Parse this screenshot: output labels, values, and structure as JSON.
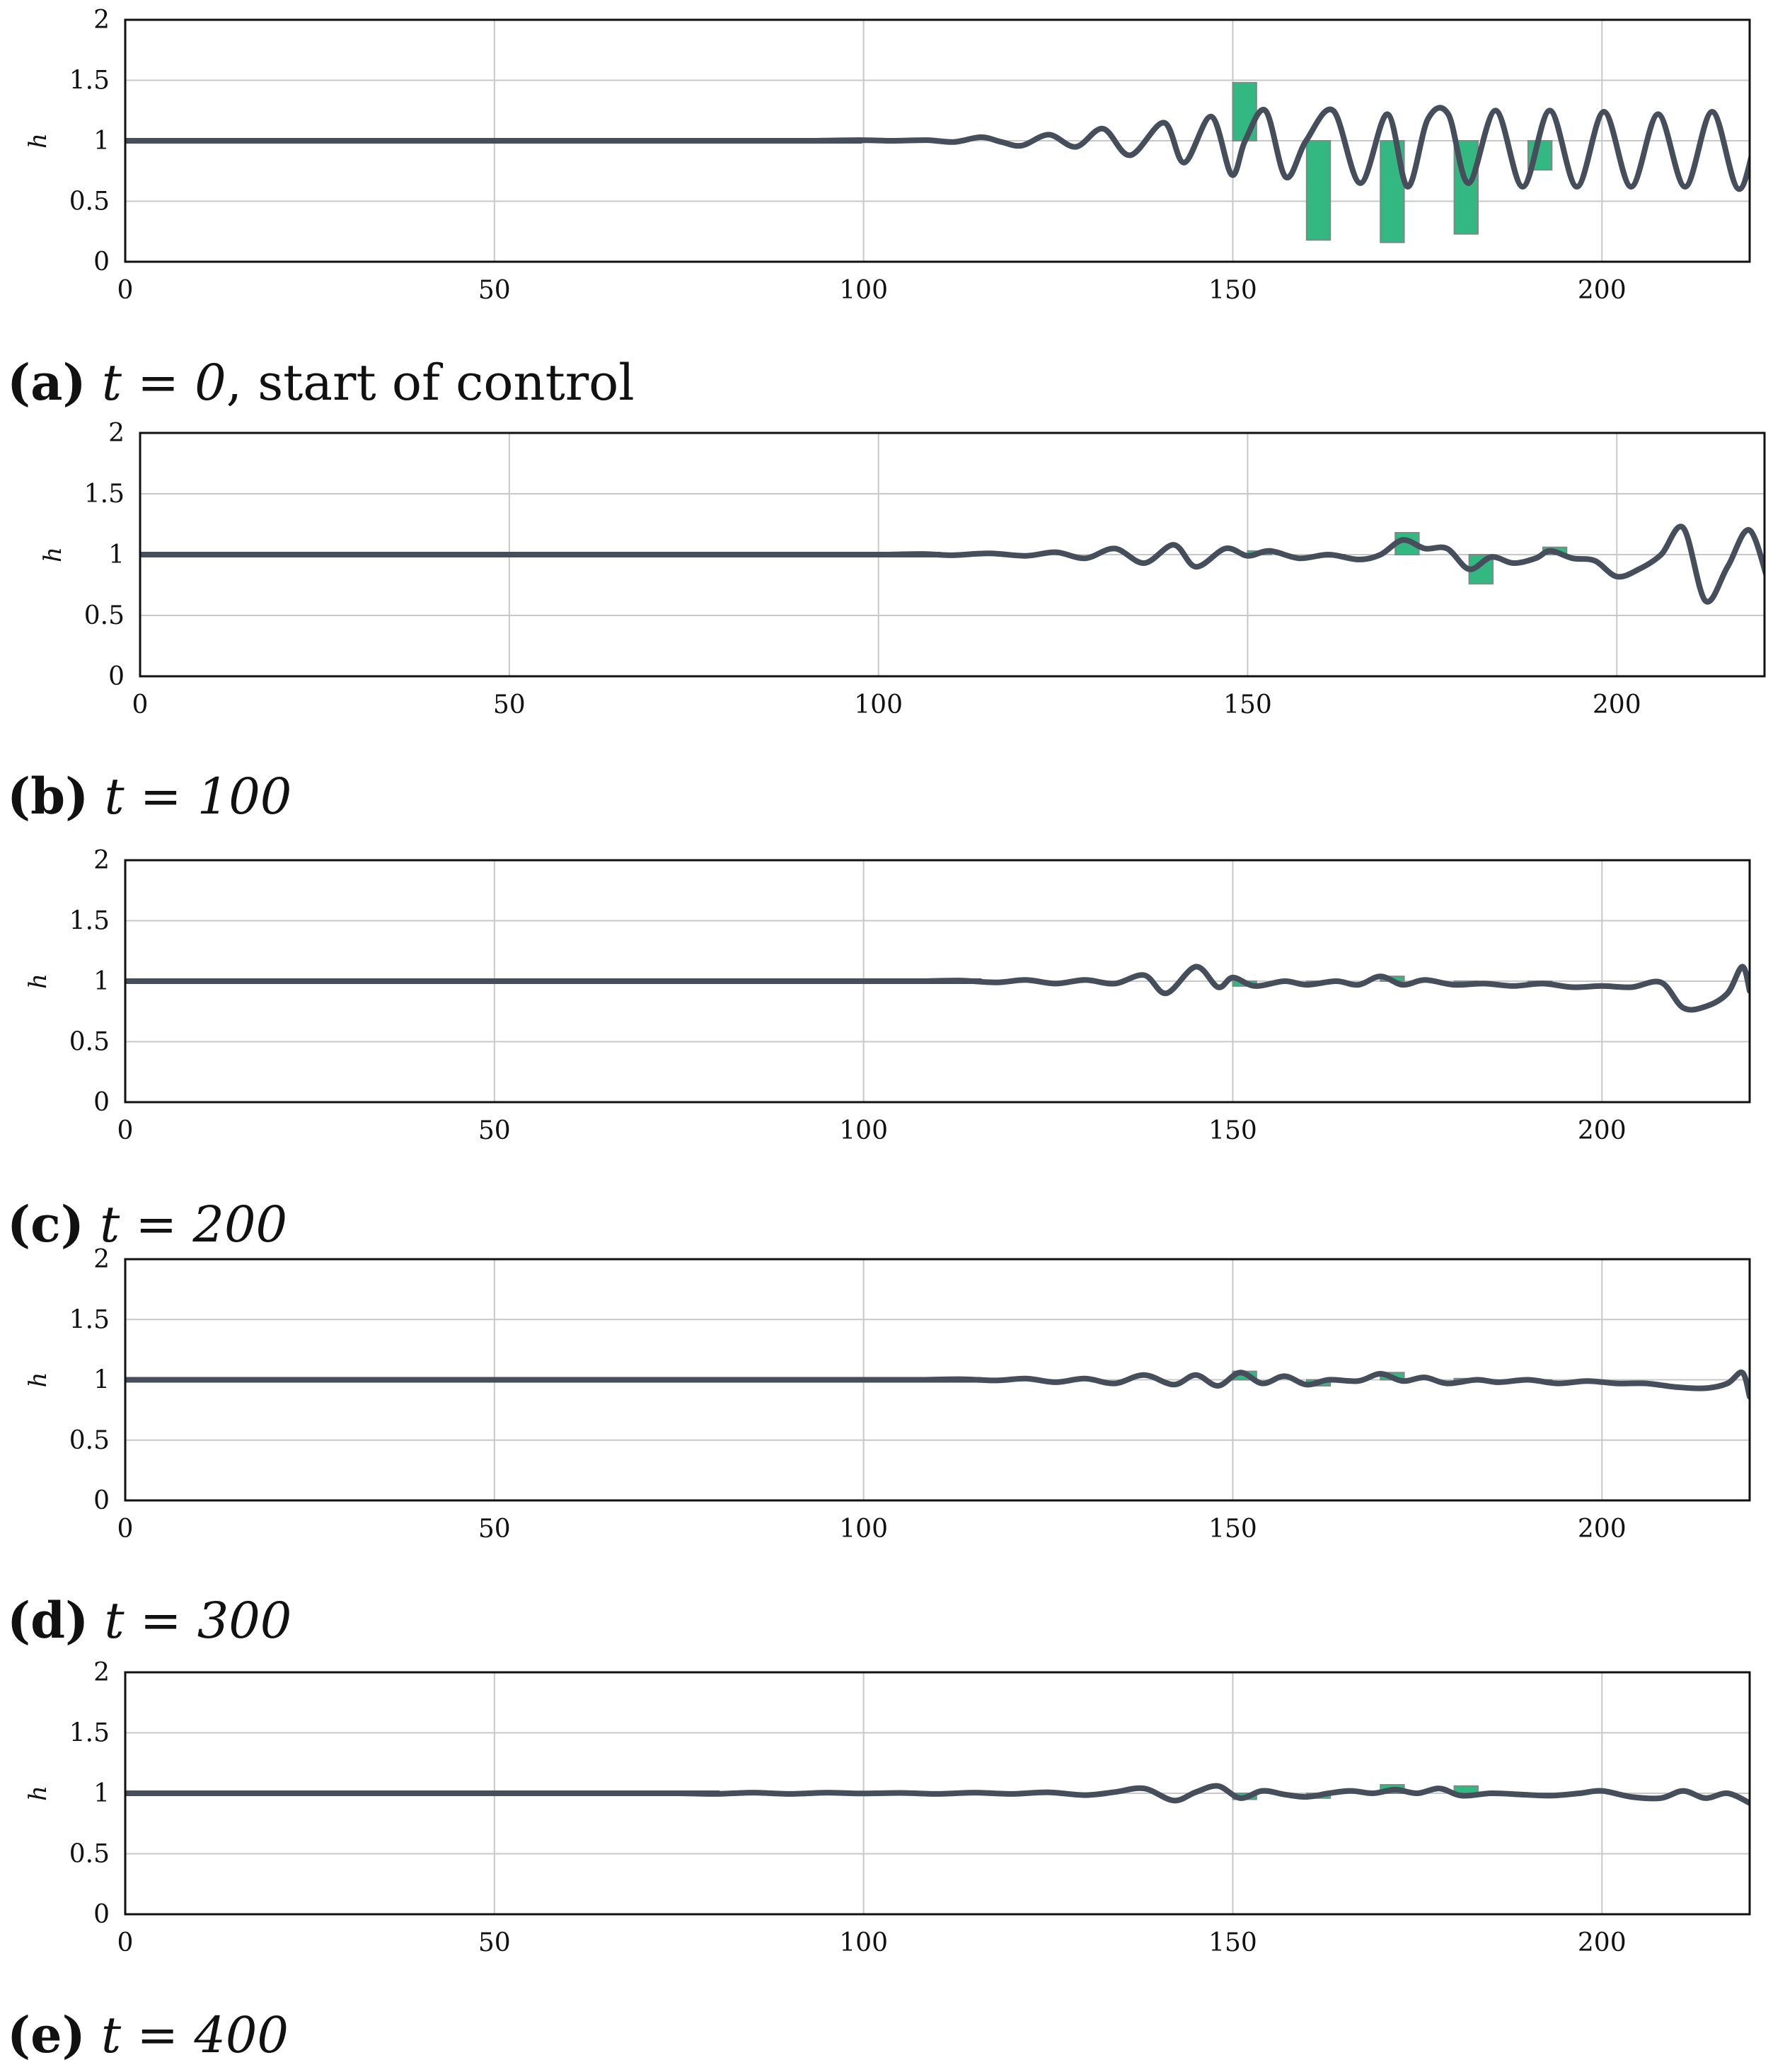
{
  "colors": {
    "line": "#454e5a",
    "bar_fill": "#34b882",
    "bar_edge": "#7a8a86",
    "grid": "#c8c8c8",
    "frame": "#111111",
    "text": "#111111"
  },
  "chart_data": [
    {
      "type": "line",
      "panel_label": "(a)",
      "caption_math": "t = 0",
      "caption_text": ", start of control",
      "title": "",
      "xlabel": "",
      "ylabel": "h",
      "xlim": [
        0,
        220
      ],
      "ylim": [
        0,
        2
      ],
      "xticks": [
        "0",
        "50",
        "100",
        "150",
        "200"
      ],
      "yticks": [
        "0",
        "0.5",
        "1",
        "1.5",
        "2"
      ],
      "grid": true,
      "wave_profile": {
        "flat_until": 93,
        "points": [
          [
            93,
            1.0
          ],
          [
            100,
            1.005
          ],
          [
            105,
            1.0
          ],
          [
            110,
            1.005
          ],
          [
            114,
            0.99
          ],
          [
            118,
            1.03
          ],
          [
            121,
            0.99
          ],
          [
            124,
            0.96
          ],
          [
            128,
            1.05
          ],
          [
            132,
            0.95
          ],
          [
            136,
            1.1
          ],
          [
            140,
            0.88
          ],
          [
            145,
            1.15
          ],
          [
            148,
            0.82
          ],
          [
            152,
            1.2
          ],
          [
            155,
            0.72
          ],
          [
            157,
            1.0
          ],
          [
            160,
            1.25
          ],
          [
            163,
            0.7
          ],
          [
            166,
            1.0
          ],
          [
            170,
            1.25
          ],
          [
            174,
            0.65
          ],
          [
            178,
            1.22
          ],
          [
            181,
            0.62
          ],
          [
            184,
            1.18
          ],
          [
            187,
            1.22
          ],
          [
            190,
            0.65
          ],
          [
            194,
            1.25
          ],
          [
            198,
            0.62
          ],
          [
            202,
            1.25
          ],
          [
            206,
            0.62
          ],
          [
            210,
            1.24
          ],
          [
            214,
            0.62
          ],
          [
            218,
            1.22
          ],
          [
            222,
            0.62
          ],
          [
            226,
            1.24
          ],
          [
            230,
            0.6
          ],
          [
            234,
            1.25
          ],
          [
            238,
            0.65
          ],
          [
            240,
            0.9
          ]
        ],
        "x_scale": 0.9168
      },
      "actuators": [
        {
          "x": 150,
          "value": 1.48
        },
        {
          "x": 160,
          "value": 0.18
        },
        {
          "x": 170,
          "value": 0.16
        },
        {
          "x": 180,
          "value": 0.23
        },
        {
          "x": 190,
          "value": 0.76
        }
      ]
    },
    {
      "type": "line",
      "panel_label": "(b)",
      "caption_math": "t = 100",
      "caption_text": "",
      "title": "",
      "xlabel": "",
      "ylabel": "h",
      "xlim": [
        0,
        220
      ],
      "ylim": [
        0,
        2
      ],
      "xticks": [
        "0",
        "50",
        "100",
        "150",
        "200"
      ],
      "yticks": [
        "0",
        "0.5",
        "1",
        "1.5",
        "2"
      ],
      "grid": true,
      "wave_profile": {
        "flat_until": 101,
        "points": [
          [
            101,
            1.0
          ],
          [
            106,
            1.005
          ],
          [
            110,
            0.995
          ],
          [
            115,
            1.01
          ],
          [
            120,
            0.99
          ],
          [
            124,
            1.02
          ],
          [
            128,
            0.97
          ],
          [
            132,
            1.05
          ],
          [
            136,
            0.93
          ],
          [
            140,
            1.08
          ],
          [
            143,
            0.9
          ],
          [
            147,
            1.05
          ],
          [
            150,
            0.99
          ],
          [
            153,
            1.03
          ],
          [
            157,
            0.97
          ],
          [
            161,
            1.0
          ],
          [
            165,
            0.96
          ],
          [
            168,
            1.0
          ],
          [
            171,
            1.12
          ],
          [
            174,
            1.05
          ],
          [
            177,
            1.05
          ],
          [
            180,
            0.88
          ],
          [
            183,
            0.98
          ],
          [
            186,
            0.93
          ],
          [
            189,
            0.97
          ],
          [
            191,
            1.03
          ],
          [
            194,
            0.97
          ],
          [
            197,
            0.95
          ],
          [
            200,
            0.82
          ],
          [
            203,
            0.88
          ],
          [
            206,
            1.0
          ],
          [
            209,
            1.22
          ],
          [
            212,
            0.62
          ],
          [
            215,
            0.9
          ],
          [
            218,
            1.2
          ],
          [
            221,
            0.7
          ],
          [
            222,
            0.84
          ]
        ],
        "x_scale": 1.0
      },
      "actuators": [
        {
          "x": 150,
          "value": 1.03
        },
        {
          "x": 160,
          "value": 0.98
        },
        {
          "x": 170,
          "value": 1.18
        },
        {
          "x": 180,
          "value": 0.76
        },
        {
          "x": 190,
          "value": 1.06
        }
      ]
    },
    {
      "type": "line",
      "panel_label": "(c)",
      "caption_math": "t = 200",
      "caption_text": "",
      "title": "",
      "xlabel": "",
      "ylabel": "h",
      "xlim": [
        0,
        220
      ],
      "ylim": [
        0,
        2
      ],
      "xticks": [
        "0",
        "50",
        "100",
        "150",
        "200"
      ],
      "yticks": [
        "0",
        "0.5",
        "1",
        "1.5",
        "2"
      ],
      "grid": true,
      "wave_profile": {
        "flat_until": 108,
        "points": [
          [
            108,
            1.0
          ],
          [
            113,
            1.005
          ],
          [
            118,
            0.99
          ],
          [
            122,
            1.01
          ],
          [
            126,
            0.98
          ],
          [
            130,
            1.01
          ],
          [
            134,
            0.98
          ],
          [
            138,
            1.05
          ],
          [
            141,
            0.9
          ],
          [
            145,
            1.12
          ],
          [
            148,
            0.95
          ],
          [
            150,
            1.03
          ],
          [
            153,
            0.96
          ],
          [
            157,
            1.0
          ],
          [
            160,
            0.97
          ],
          [
            164,
            1.0
          ],
          [
            167,
            0.97
          ],
          [
            170,
            1.04
          ],
          [
            173,
            0.97
          ],
          [
            176,
            1.01
          ],
          [
            180,
            0.97
          ],
          [
            184,
            0.98
          ],
          [
            188,
            0.96
          ],
          [
            192,
            0.98
          ],
          [
            196,
            0.95
          ],
          [
            200,
            0.96
          ],
          [
            204,
            0.95
          ],
          [
            208,
            0.99
          ],
          [
            211,
            0.78
          ],
          [
            214,
            0.79
          ],
          [
            217,
            0.9
          ],
          [
            219,
            1.12
          ],
          [
            220,
            0.92
          ]
        ],
        "x_scale": 1.0
      },
      "actuators": [
        {
          "x": 150,
          "value": 0.96
        },
        {
          "x": 160,
          "value": 0.99
        },
        {
          "x": 170,
          "value": 1.04
        },
        {
          "x": 180,
          "value": 0.99
        },
        {
          "x": 190,
          "value": 0.99
        }
      ]
    },
    {
      "type": "line",
      "panel_label": "(d)",
      "caption_math": "t = 300",
      "caption_text": "",
      "title": "",
      "xlabel": "",
      "ylabel": "h",
      "xlim": [
        0,
        220
      ],
      "ylim": [
        0,
        2
      ],
      "xticks": [
        "0",
        "50",
        "100",
        "150",
        "200"
      ],
      "yticks": [
        "0",
        "0.5",
        "1",
        "1.5",
        "2"
      ],
      "grid": true,
      "wave_profile": {
        "flat_until": 108,
        "points": [
          [
            108,
            1.0
          ],
          [
            113,
            1.005
          ],
          [
            118,
            0.995
          ],
          [
            122,
            1.01
          ],
          [
            126,
            0.98
          ],
          [
            130,
            1.01
          ],
          [
            134,
            0.97
          ],
          [
            138,
            1.04
          ],
          [
            142,
            0.96
          ],
          [
            145,
            1.04
          ],
          [
            148,
            0.95
          ],
          [
            151,
            1.06
          ],
          [
            154,
            0.97
          ],
          [
            157,
            1.03
          ],
          [
            160,
            0.96
          ],
          [
            163,
            1.0
          ],
          [
            167,
            0.99
          ],
          [
            170,
            1.05
          ],
          [
            173,
            0.99
          ],
          [
            176,
            1.02
          ],
          [
            179,
            0.97
          ],
          [
            183,
            1.0
          ],
          [
            186,
            0.98
          ],
          [
            190,
            1.0
          ],
          [
            194,
            0.97
          ],
          [
            198,
            0.99
          ],
          [
            202,
            0.97
          ],
          [
            206,
            0.97
          ],
          [
            210,
            0.94
          ],
          [
            214,
            0.93
          ],
          [
            217,
            0.97
          ],
          [
            219,
            1.06
          ],
          [
            220,
            0.86
          ]
        ],
        "x_scale": 1.0
      },
      "actuators": [
        {
          "x": 150,
          "value": 1.07
        },
        {
          "x": 160,
          "value": 0.95
        },
        {
          "x": 170,
          "value": 1.06
        },
        {
          "x": 180,
          "value": 1.01
        },
        {
          "x": 190,
          "value": 0.99
        }
      ]
    },
    {
      "type": "line",
      "panel_label": "(e)",
      "caption_math": "t = 400",
      "caption_text": "",
      "title": "",
      "xlabel": "",
      "ylabel": "h",
      "xlim": [
        0,
        220
      ],
      "ylim": [
        0,
        2
      ],
      "xticks": [
        "0",
        "50",
        "100",
        "150",
        "200"
      ],
      "yticks": [
        "0",
        "0.5",
        "1",
        "1.5",
        "2"
      ],
      "grid": true,
      "wave_profile": {
        "flat_until": 75,
        "points": [
          [
            75,
            1.0
          ],
          [
            80,
            0.995
          ],
          [
            85,
            1.005
          ],
          [
            90,
            0.995
          ],
          [
            95,
            1.005
          ],
          [
            100,
            0.998
          ],
          [
            105,
            1.003
          ],
          [
            110,
            0.995
          ],
          [
            115,
            1.005
          ],
          [
            120,
            0.995
          ],
          [
            125,
            1.008
          ],
          [
            130,
            0.985
          ],
          [
            134,
            1.01
          ],
          [
            138,
            1.04
          ],
          [
            142,
            0.94
          ],
          [
            145,
            1.01
          ],
          [
            148,
            1.06
          ],
          [
            151,
            0.96
          ],
          [
            154,
            1.02
          ],
          [
            157,
            0.99
          ],
          [
            160,
            0.97
          ],
          [
            163,
            1.0
          ],
          [
            166,
            1.02
          ],
          [
            169,
            1.0
          ],
          [
            172,
            1.03
          ],
          [
            175,
            1.0
          ],
          [
            178,
            1.04
          ],
          [
            181,
            0.98
          ],
          [
            185,
            1.0
          ],
          [
            189,
            0.99
          ],
          [
            193,
            0.98
          ],
          [
            197,
            1.0
          ],
          [
            200,
            1.02
          ],
          [
            204,
            0.97
          ],
          [
            208,
            0.96
          ],
          [
            211,
            1.02
          ],
          [
            214,
            0.96
          ],
          [
            217,
            1.0
          ],
          [
            220,
            0.92
          ]
        ],
        "x_scale": 1.0
      },
      "actuators": [
        {
          "x": 150,
          "value": 0.95
        },
        {
          "x": 160,
          "value": 0.96
        },
        {
          "x": 170,
          "value": 1.07
        },
        {
          "x": 180,
          "value": 1.06
        },
        {
          "x": 190,
          "value": 1.0
        }
      ]
    }
  ]
}
